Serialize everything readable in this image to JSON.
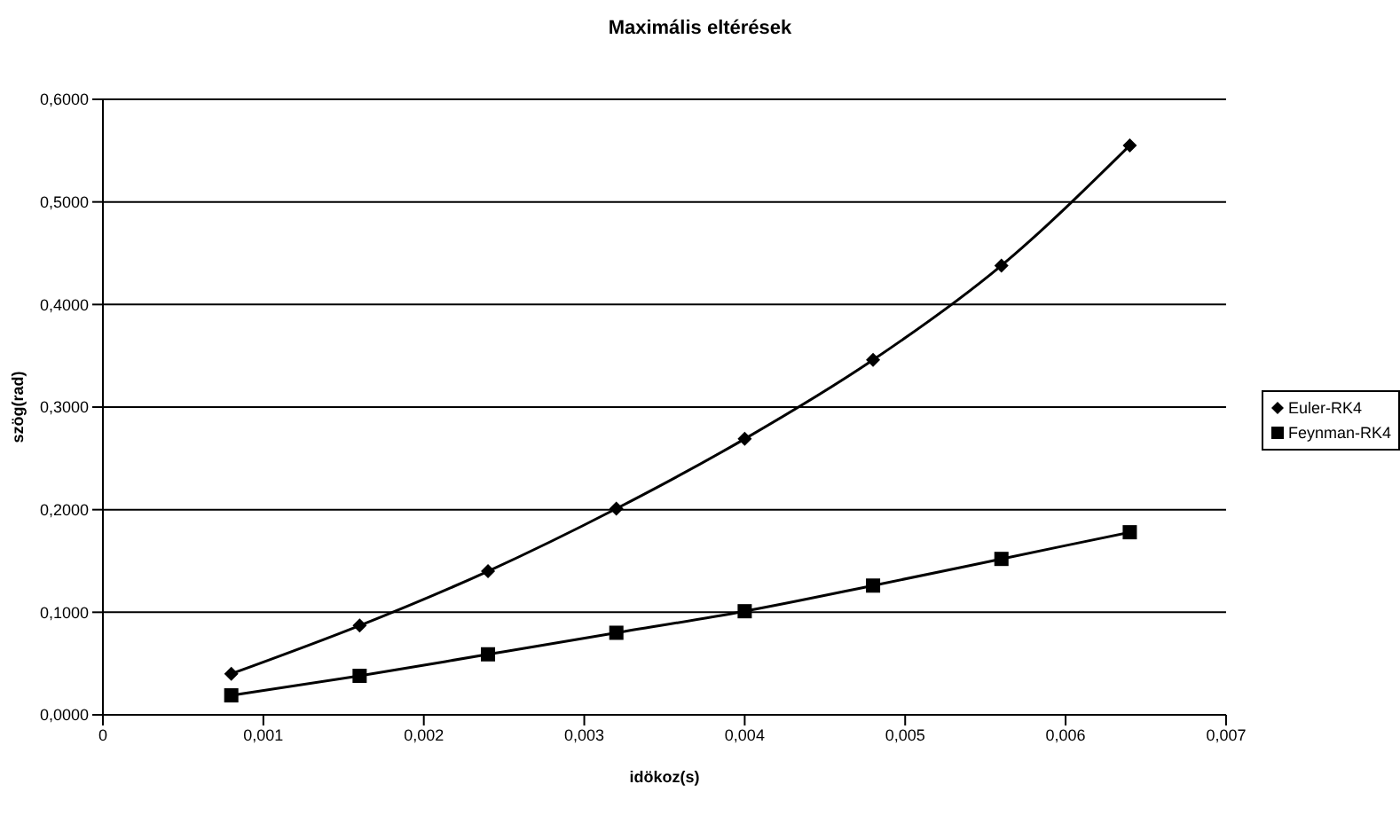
{
  "chart_data": {
    "type": "line",
    "title": "Maximális eltérések",
    "xlabel": "idökoz(s)",
    "ylabel": "szög(rad)",
    "x": [
      0.0008,
      0.0016,
      0.0024,
      0.0032,
      0.004,
      0.0048,
      0.0056,
      0.0064
    ],
    "series": [
      {
        "name": "Euler-RK4",
        "color": "#000000",
        "marker": "diamond",
        "values": [
          0.04,
          0.087,
          0.14,
          0.201,
          0.269,
          0.346,
          0.438,
          0.555
        ]
      },
      {
        "name": "Feynman-RK4",
        "color": "#000000",
        "marker": "square",
        "values": [
          0.019,
          0.038,
          0.059,
          0.08,
          0.101,
          0.126,
          0.152,
          0.178
        ]
      }
    ],
    "xlim": [
      0,
      0.007
    ],
    "xticks": [
      0,
      {
        "value": 0.001,
        "label": "0,001"
      },
      {
        "value": 0.002,
        "label": "0,002"
      },
      {
        "value": 0.003,
        "label": "0,003"
      },
      {
        "value": 0.004,
        "label": "0,004"
      },
      {
        "value": 0.005,
        "label": "0,005"
      },
      {
        "value": 0.006,
        "label": "0,006"
      },
      {
        "value": 0.007,
        "label": "0,007"
      }
    ],
    "ylim": [
      0,
      0.6
    ],
    "yticks": [
      {
        "value": 0,
        "label": "0,0000"
      },
      {
        "value": 0.1,
        "label": "0,1000"
      },
      {
        "value": 0.2,
        "label": "0,2000"
      },
      {
        "value": 0.3,
        "label": "0,3000"
      },
      {
        "value": 0.4,
        "label": "0,4000"
      },
      {
        "value": 0.5,
        "label": "0,5000"
      },
      {
        "value": 0.6,
        "label": "0,6000"
      }
    ],
    "grid": "y",
    "legend": "right",
    "line_style": "solid"
  }
}
